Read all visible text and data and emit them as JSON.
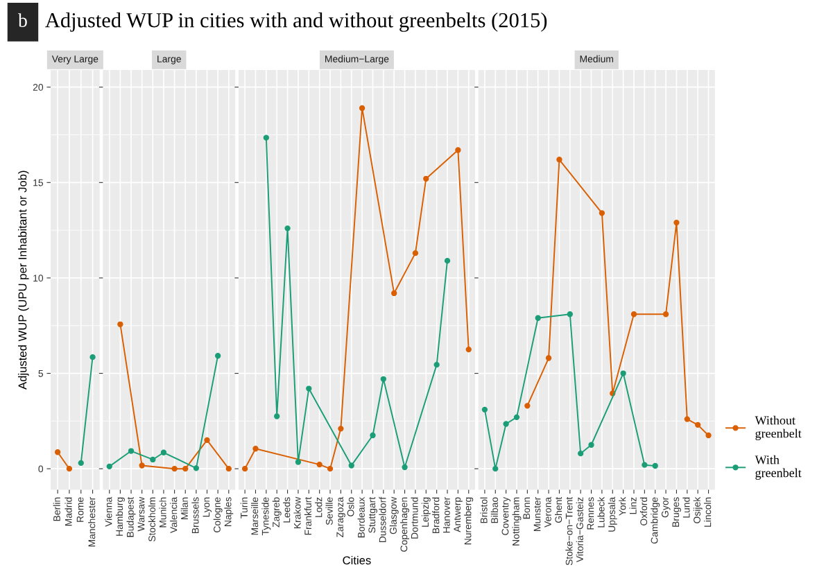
{
  "chart_data": [
    {
      "type": "line",
      "title": "Very Large",
      "ylabel": "Adjusted WUP (UPU per Inhabitant or Job)",
      "annotations": [
        "b",
        "Adjusted WUP in cities with and without greenbelts (2015)"
      ],
      "categories": [
        "Berlin",
        "Madrid",
        "Rome",
        "Manchester"
      ],
      "series": [
        {
          "color": "#d95f02",
          "values": [
            0.87,
            0,
            null,
            null
          ]
        },
        {
          "color": "#1b9e77",
          "values": [
            null,
            null,
            0.3,
            5.85
          ]
        }
      ],
      "ylim": [
        -1.1,
        20.9
      ],
      "yticks": [
        0,
        5,
        10,
        15,
        20
      ],
      "grid": true,
      "marker": "circle",
      "line_style": "solid",
      "legend": false
    },
    {
      "type": "line",
      "title": "Large",
      "categories": [
        "Vienna",
        "Hamburg",
        "Budapest",
        "Warsaw",
        "Stockholm",
        "Munich",
        "Valencia",
        "Milan",
        "Brussels",
        "Lyon",
        "Cologne",
        "Naples"
      ],
      "series": [
        {
          "color": "#d95f02",
          "values": [
            null,
            7.57,
            null,
            0.17,
            null,
            null,
            0,
            0,
            null,
            1.5,
            null,
            0
          ]
        },
        {
          "color": "#1b9e77",
          "values": [
            0.12,
            null,
            0.93,
            null,
            0.48,
            0.85,
            null,
            null,
            0.03,
            null,
            5.92,
            null
          ]
        }
      ],
      "ylim": [
        -1.1,
        20.9
      ],
      "yticks": [
        0,
        5,
        10,
        15,
        20
      ],
      "tick_labels": "x",
      "grid": true,
      "marker": "circle",
      "line_style": "solid",
      "legend": false
    },
    {
      "type": "line",
      "title": "Medium−Large",
      "xlabel": "Cities",
      "categories": [
        "Turin",
        "Marseille",
        "Tyneside",
        "Zagreb",
        "Leeds",
        "Krakow",
        "Frankfurt",
        "Lodz",
        "Seville",
        "Zaragoza",
        "Oslo",
        "Bordeaux",
        "Stuttgart",
        "Dusseldorf",
        "Glasgow",
        "Copenhagen",
        "Dortmund",
        "Leipzig",
        "Bradford",
        "Hanover",
        "Antwerp",
        "Nuremberg"
      ],
      "series": [
        {
          "color": "#d95f02",
          "values": [
            0,
            1.05,
            null,
            null,
            null,
            null,
            null,
            0.22,
            0,
            2.1,
            null,
            18.9,
            null,
            null,
            9.2,
            null,
            11.3,
            15.2,
            null,
            null,
            16.7,
            6.25
          ]
        },
        {
          "color": "#1b9e77",
          "values": [
            null,
            null,
            17.35,
            2.75,
            12.6,
            0.35,
            4.2,
            null,
            null,
            null,
            0.17,
            null,
            1.75,
            4.7,
            null,
            0.08,
            null,
            null,
            5.45,
            10.9,
            null,
            null
          ]
        }
      ],
      "ylim": [
        -1.1,
        20.9
      ],
      "yticks": [
        0,
        5,
        10,
        15,
        20
      ],
      "tick_labels": "x",
      "grid": true,
      "marker": "circle",
      "line_style": "solid",
      "legend": false
    },
    {
      "type": "line",
      "title": "Medium",
      "categories": [
        "Bristol",
        "Bilbao",
        "Coventry",
        "Nottingham",
        "Bonn",
        "Munster",
        "Verona",
        "Ghent",
        "Stoke−on−Trent",
        "Vitoria−Gasteiz",
        "Rennes",
        "Lubeck",
        "Uppsala",
        "York",
        "Linz",
        "Oxford",
        "Cambridge",
        "Gyor",
        "Bruges",
        "Lund",
        "Osijek",
        "Lincoln"
      ],
      "series": [
        {
          "name": "Without\ngreenbelt",
          "color": "#d95f02",
          "values": [
            null,
            null,
            null,
            null,
            3.3,
            null,
            5.8,
            16.2,
            null,
            null,
            null,
            13.4,
            3.95,
            null,
            8.1,
            null,
            null,
            8.1,
            12.9,
            2.6,
            2.3,
            1.75
          ]
        },
        {
          "name": "With\ngreenbelt",
          "color": "#1b9e77",
          "values": [
            3.1,
            0,
            2.35,
            2.7,
            null,
            7.9,
            null,
            null,
            8.1,
            0.8,
            1.25,
            null,
            null,
            5.0,
            null,
            0.2,
            0.15,
            null,
            null,
            null,
            null,
            null
          ]
        }
      ],
      "ylim": [
        -1.1,
        20.9
      ],
      "yticks": [
        0,
        5,
        10,
        15,
        20
      ],
      "tick_labels": "x",
      "grid": true,
      "marker": "circle",
      "line_style": "solid",
      "legend": "right"
    }
  ]
}
